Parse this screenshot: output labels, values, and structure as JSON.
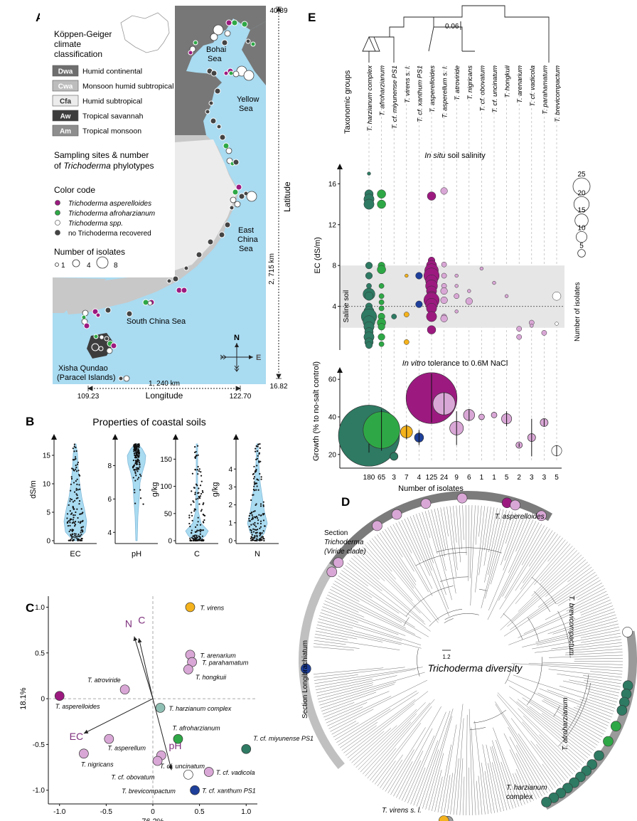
{
  "panelA": {
    "letter": "A",
    "legend_title": [
      "Köppen-Geiger",
      "climate",
      "classification"
    ],
    "climates": [
      {
        "code": "Dwa",
        "label": "Humid continental",
        "color": "#6e6e6e"
      },
      {
        "code": "Cwa",
        "label": "Monsoon humid subtropical",
        "color": "#bdbdbd"
      },
      {
        "code": "Cfa",
        "label": "Humid subtropical",
        "color": "#ececec"
      },
      {
        "code": "Aw",
        "label": "Tropical savannah",
        "color": "#3c3c3c"
      },
      {
        "code": "Am",
        "label": "Tropical monsoon",
        "color": "#8e8e8e"
      }
    ],
    "sampling_title_1": "Sampling sites & number",
    "sampling_title_2_pre": "of ",
    "sampling_title_2_it": "Trichoderma",
    "sampling_title_2_post": " phylotypes",
    "color_code_title": "Color code",
    "color_code": [
      {
        "label": "Trichoderma asperelloides",
        "color": "#9c1a80"
      },
      {
        "label": "Trichoderma afroharzianum",
        "color": "#2ea846"
      },
      {
        "label": "Trichoderma spp.",
        "color": "#ffffff"
      },
      {
        "label": "no Trichoderma recovered",
        "color": "#444444"
      }
    ],
    "isolates_title": "Number of isolates",
    "isolate_sizes": [
      "1",
      "4",
      "8"
    ],
    "seas": [
      "Bohai",
      "Sea",
      "Yellow",
      "Sea",
      "East",
      "China",
      "Sea",
      "South China Sea",
      "Xisha Qundao",
      "(Paracel Islands)"
    ],
    "lat_top": "40.89",
    "lat_bottom": "16.82",
    "lat_km": "2, 715 km",
    "lat_label": "Latitude",
    "lon_left": "109.23",
    "lon_right": "122.70",
    "lon_km": "1, 240 km",
    "lon_label": "Longitude",
    "compass_n": "N",
    "compass_e": "E",
    "colors": {
      "sea": "#a9dbf1",
      "land_dark": "#777777",
      "land_light": "#c8c8c8",
      "asperelloides": "#9c1a80",
      "afroharzianum": "#2ea846",
      "none": "#444444"
    }
  },
  "panelB": {
    "letter": "B",
    "title": "Properties of coastal soils",
    "violins": [
      {
        "xlabel": "EC",
        "ylabel": "dS/m",
        "ticks": [
          "0",
          "5",
          "10",
          "15"
        ],
        "range": [
          0,
          17
        ]
      },
      {
        "xlabel": "pH",
        "ylabel": "",
        "ticks": [
          "4",
          "6",
          "8"
        ],
        "range": [
          3.5,
          9.3
        ]
      },
      {
        "xlabel": "C",
        "ylabel": "g/kg",
        "ticks": [
          "0",
          "50",
          "100",
          "150"
        ],
        "range": [
          0,
          178
        ]
      },
      {
        "xlabel": "N",
        "ylabel": "g/kg",
        "ticks": [
          "0",
          "1",
          "2",
          "3",
          "4"
        ],
        "range": [
          0,
          5.4
        ]
      }
    ]
  },
  "panelC": {
    "letter": "C",
    "chart_data": {
      "type": "scatter",
      "xlabel": "76.2%",
      "ylabel": "18.1%",
      "xlim": [
        -1.12,
        1.12
      ],
      "ylim": [
        -1.15,
        1.12
      ],
      "xticks": [
        "-1.0",
        "-0.5",
        "0",
        "0.5",
        "1.0"
      ],
      "yticks": [
        "1.0",
        "0.5",
        "0",
        "-0.5",
        "-1.0"
      ],
      "points": [
        {
          "label": "T. virens",
          "x": 0.4,
          "y": 1.0,
          "color": "#f4b21c"
        },
        {
          "label": "T. arenarium",
          "x": 0.4,
          "y": 0.48,
          "color": "#d9a7d6"
        },
        {
          "label": "T. parahamatum",
          "x": 0.42,
          "y": 0.4,
          "color": "#d9a7d6"
        },
        {
          "label": "T. hongkuii",
          "x": 0.38,
          "y": 0.32,
          "color": "#d9a7d6"
        },
        {
          "label": "T. atroviride",
          "x": -0.3,
          "y": 0.1,
          "color": "#d9a7d6"
        },
        {
          "label": "T. asperelloides",
          "x": -1.0,
          "y": 0.03,
          "color": "#9c1a80"
        },
        {
          "label": "T. harzianum complex",
          "x": 0.08,
          "y": -0.1,
          "color": "#8fbfb3"
        },
        {
          "label": "T. afroharzianum",
          "x": 0.27,
          "y": -0.44,
          "color": "#2ea846"
        },
        {
          "label": "T. cf. miyunense PS1",
          "x": 1.0,
          "y": -0.55,
          "color": "#2e7a63"
        },
        {
          "label": "T. asperellum",
          "x": -0.47,
          "y": -0.44,
          "color": "#d9a7d6"
        },
        {
          "label": "T. nigricans",
          "x": -0.74,
          "y": -0.6,
          "color": "#d9a7d6"
        },
        {
          "label": "T. cf. uncinatum",
          "x": 0.09,
          "y": -0.62,
          "color": "#d9a7d6"
        },
        {
          "label": "T. cf. obovatum",
          "x": 0.05,
          "y": -0.68,
          "color": "#d9a7d6"
        },
        {
          "label": "T. cf. vadicola",
          "x": 0.6,
          "y": -0.8,
          "color": "#d9a7d6"
        },
        {
          "label": "T. brevicompactum",
          "x": 0.38,
          "y": -0.83,
          "color": "#ffffff"
        },
        {
          "label": "T. cf. xanthum PS1",
          "x": 0.45,
          "y": -1.0,
          "color": "#1e3f9a"
        }
      ],
      "vectors": [
        {
          "label": "N",
          "x": -0.2,
          "y": 0.68
        },
        {
          "label": "C",
          "x": -0.15,
          "y": 0.66
        },
        {
          "label": "EC",
          "x": -0.74,
          "y": -0.38
        },
        {
          "label": "pH",
          "x": 0.2,
          "y": -0.78
        }
      ],
      "vector_color": "#7d2f7c"
    }
  },
  "panelD": {
    "letter": "D",
    "center_label": "Trichoderma diversity",
    "scale": "1.2",
    "labels": {
      "asperelloides": "T. asperelloides",
      "brevicompactum": "T. brevicompactum",
      "section_tricho": [
        "Section",
        "Trichoderma",
        "(Viride clade)"
      ],
      "longibrachiatum": "Section Longibrachiatum",
      "afroharzianum": "T. afroharzianum",
      "harzianum": [
        "T. harzianum",
        "complex"
      ],
      "virens": "T. virens s. l."
    }
  },
  "panelE": {
    "letter": "E",
    "tree_scale": "0.06",
    "tax_label": "Taxonomic groups",
    "taxa": [
      {
        "name": "T. harzianum complex",
        "color": "#2e7a63",
        "n": "180",
        "growth": 30,
        "err": 9
      },
      {
        "name": "T. afroharzianum",
        "color": "#2ea846",
        "n": "65",
        "growth": 33,
        "err": 11
      },
      {
        "name": "T. cf. miyunense PS1",
        "color": "#2e7a63",
        "n": "3",
        "growth": 19,
        "err": 0
      },
      {
        "name": "T. virens s. l.",
        "color": "#f4b21c",
        "n": "7",
        "growth": 32,
        "err": 4
      },
      {
        "name": "T. cf. xanthum PS1",
        "color": "#1e3f9a",
        "n": "4",
        "growth": 29,
        "err": 4
      },
      {
        "name": "T. asperelloides",
        "color": "#9c1a80",
        "n": "125",
        "growth": 50,
        "err": 13
      },
      {
        "name": "T. asperellum s. l.",
        "color": "#d9a7d6",
        "n": "24",
        "growth": 47,
        "err": 6
      },
      {
        "name": "T. atroviride",
        "color": "#d9a7d6",
        "n": "9",
        "growth": 34,
        "err": 9
      },
      {
        "name": "T. nigricans",
        "color": "#d9a7d6",
        "n": "6",
        "growth": 41,
        "err": 3
      },
      {
        "name": "T. cf. obovatum",
        "color": "#d9a7d6",
        "n": "1",
        "growth": 40,
        "err": 0
      },
      {
        "name": "T. cf. uncinatum",
        "color": "#d9a7d6",
        "n": "1",
        "growth": 41,
        "err": 0
      },
      {
        "name": "T. hongkuii",
        "color": "#d9a7d6",
        "n": "5",
        "growth": 39,
        "err": 4
      },
      {
        "name": "T. arenarium",
        "color": "#d9a7d6",
        "n": "2",
        "growth": 25,
        "err": 1
      },
      {
        "name": "T. cf. vadicola",
        "color": "#d9a7d6",
        "n": "3",
        "growth": 29,
        "err": 10
      },
      {
        "name": "T. parahamatum",
        "color": "#d9a7d6",
        "n": "3",
        "growth": 37,
        "err": 2
      },
      {
        "name": "T. brevicompactum",
        "color": "#ffffff",
        "n": "5",
        "growth": 22,
        "err": 3
      }
    ],
    "insitu_title_it": "In situ",
    "insitu_title": " soil salinity",
    "ec_label": "EC (dS/m)",
    "ec_ticks": [
      "16",
      "12",
      "8",
      "4"
    ],
    "saline_label": "Saline soil",
    "size_legend": [
      "25",
      "20",
      "15",
      "10",
      "5"
    ],
    "size_legend_title": "Number of isolates",
    "invitro_title_it": "In vitro",
    "invitro_title": " tolerance to 0.6M NaCl",
    "growth_label": "Growth (%  to no-salt control)",
    "growth_ticks": [
      "60",
      "40",
      "20"
    ],
    "xlabel": "Number of isolates"
  }
}
